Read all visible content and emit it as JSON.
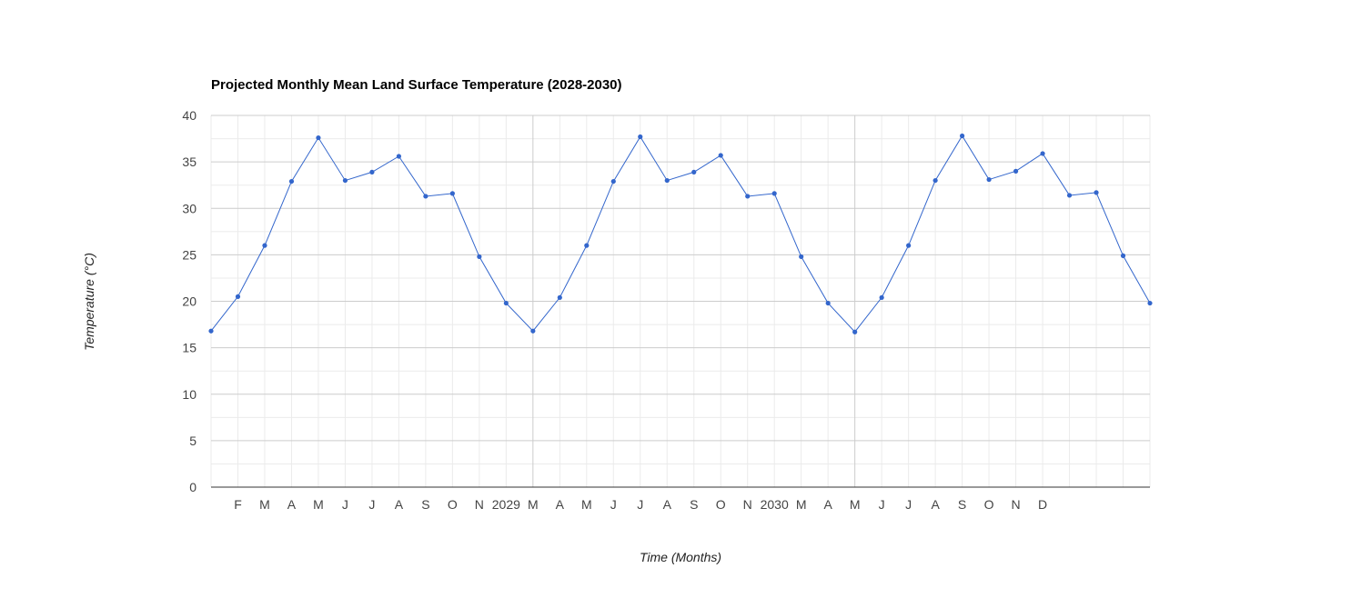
{
  "chart_data": {
    "type": "line",
    "title": "Projected Monthly Mean Land Surface Temperature (2028-2030)",
    "xlabel": "Time (Months)",
    "ylabel": "Temperature (°C)",
    "ylim": [
      0,
      40
    ],
    "yticks": [
      "0",
      "5",
      "10",
      "15",
      "20",
      "25",
      "30",
      "35",
      "40"
    ],
    "xticks": [
      "F",
      "M",
      "A",
      "M",
      "J",
      "J",
      "A",
      "S",
      "O",
      "N",
      "2029",
      "M",
      "A",
      "M",
      "J",
      "J",
      "A",
      "S",
      "O",
      "N",
      "2030",
      "M",
      "A",
      "M",
      "J",
      "J",
      "A",
      "S",
      "O",
      "N",
      "D"
    ],
    "x": [
      "2028-01",
      "2028-02",
      "2028-03",
      "2028-04",
      "2028-05",
      "2028-06",
      "2028-07",
      "2028-08",
      "2028-09",
      "2028-10",
      "2028-11",
      "2028-12",
      "2029-01",
      "2029-02",
      "2029-03",
      "2029-04",
      "2029-05",
      "2029-06",
      "2029-07",
      "2029-08",
      "2029-09",
      "2029-10",
      "2029-11",
      "2029-12",
      "2030-01",
      "2030-02",
      "2030-03",
      "2030-04",
      "2030-05",
      "2030-06",
      "2030-07",
      "2030-08",
      "2030-09",
      "2030-10",
      "2030-11",
      "2030-12"
    ],
    "grid": true,
    "legend": "none",
    "series": [
      {
        "color": "#3366cc",
        "values": [
          16.8,
          20.5,
          26.0,
          32.9,
          37.6,
          33.0,
          33.9,
          35.6,
          31.3,
          31.6,
          24.8,
          19.8,
          16.8,
          20.4,
          26.0,
          32.9,
          37.7,
          33.0,
          33.9,
          35.7,
          31.3,
          31.6,
          24.8,
          19.8,
          16.7,
          20.4,
          26.0,
          33.0,
          37.8,
          33.1,
          34.0,
          35.9,
          31.4,
          31.7,
          24.9,
          19.8
        ]
      }
    ]
  }
}
